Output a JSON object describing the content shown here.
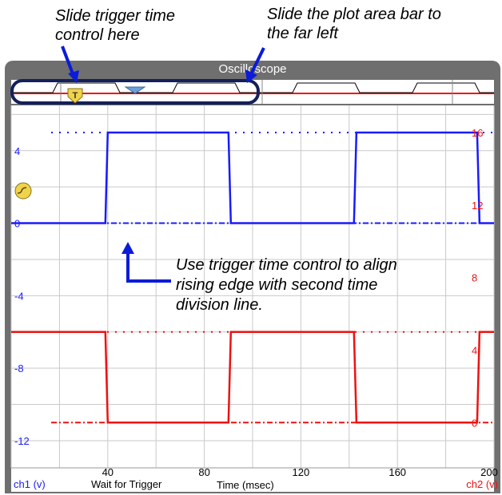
{
  "annotations": {
    "trigger_hint": [
      "Slide trigger time",
      "control here"
    ],
    "plot_bar_hint": [
      "Slide the plot area bar to",
      "the far left"
    ],
    "align_hint": [
      "Use trigger time control to align",
      "rising edge with second time",
      "division line."
    ]
  },
  "window": {
    "title": "Oscilloscope"
  },
  "overview": {
    "trigger_marker": "T"
  },
  "status": {
    "text": "Wait for Trigger"
  },
  "axes": {
    "x_label": "Time (msec)",
    "x_ticks": [
      "40",
      "80",
      "120",
      "160",
      "200"
    ],
    "y_left_label": "ch1 (v)",
    "y_left_ticks": [
      "4",
      "0",
      "-4",
      "-8",
      "-12"
    ],
    "y_right_label": "ch2 (v)",
    "y_right_ticks": [
      "16",
      "12",
      "8",
      "4",
      "0"
    ]
  },
  "colors": {
    "ch1": "#1a1aff",
    "ch2": "#ee1111",
    "frame": "#6f6f6f",
    "grid": "#c9c9c9",
    "highlight": "#14205a"
  },
  "chart_data": {
    "type": "line",
    "xlim": [
      0,
      200
    ],
    "series": [
      {
        "axis": "left",
        "x": [
          0,
          39,
          40,
          90,
          91,
          142,
          143,
          193,
          194,
          200
        ],
        "y": [
          0,
          0,
          5,
          5,
          0,
          0,
          5,
          5,
          0,
          0
        ]
      },
      {
        "axis": "right",
        "x": [
          0,
          39,
          40,
          90,
          91,
          142,
          143,
          193,
          194,
          200
        ],
        "y": [
          5,
          5,
          0,
          0,
          5,
          5,
          0,
          0,
          5,
          5
        ]
      }
    ],
    "reference_lines": [
      {
        "axis": "left",
        "y": 5,
        "style": "dotted"
      },
      {
        "axis": "left",
        "y": 0,
        "style": "dashdot"
      },
      {
        "axis": "right",
        "y": 5,
        "style": "dotted"
      },
      {
        "axis": "right",
        "y": 0,
        "style": "dashdot"
      }
    ]
  }
}
